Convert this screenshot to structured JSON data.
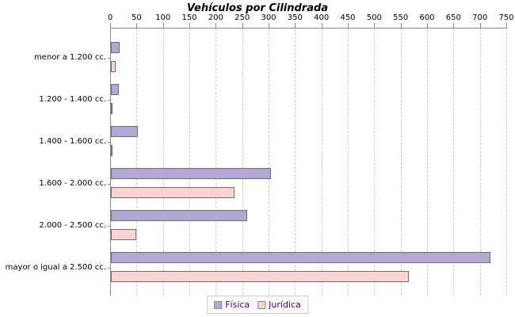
{
  "title": "Vehículos por Cilindrada",
  "chart_data": {
    "type": "bar",
    "orientation": "horizontal",
    "title": "Vehículos por Cilindrada",
    "categories": [
      "menor a 1.200 cc.",
      "1.200 - 1.400 cc.",
      "1.400 - 1.600 cc.",
      "1.600 - 2.000 cc.",
      "2.000 - 2.500 cc.",
      "mayor o igual a 2.500 cc."
    ],
    "series": [
      {
        "name": "Física",
        "fill": "#b3a8d3",
        "border": "#6e6e6e",
        "values": [
          18,
          17,
          52,
          305,
          260,
          720
        ]
      },
      {
        "name": "Jurídica",
        "fill": "#fcd3d3",
        "border": "#6e6e6e",
        "values": [
          10,
          3,
          4,
          235,
          50,
          565
        ]
      }
    ],
    "xlim": [
      0,
      750
    ],
    "xtick_step": 50,
    "grid": "vertical-dashed",
    "legend_position": "bottom"
  },
  "colors": {
    "axis": "#8a8a8a",
    "grid": "#cccccc",
    "title_text": "#000000",
    "label_text": "#000000",
    "legend_text": "#400070",
    "legend_border": "#c9c9c9",
    "background": "#ffffff"
  }
}
